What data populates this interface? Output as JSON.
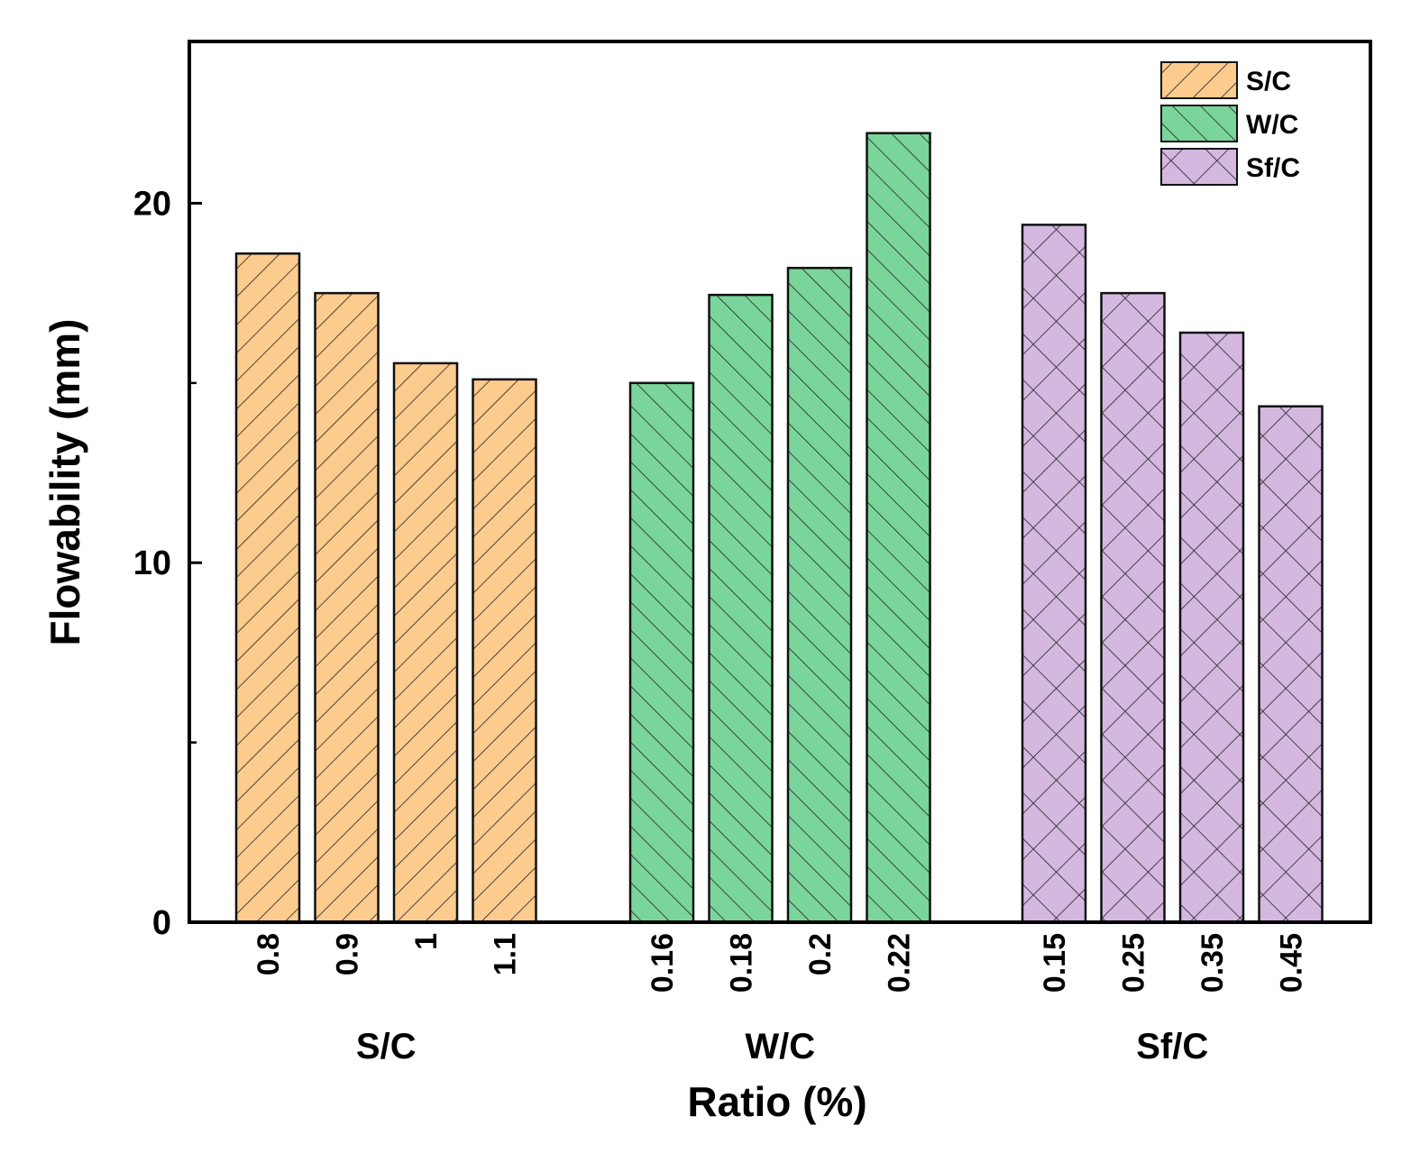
{
  "chart_data": {
    "type": "bar",
    "title": "",
    "xlabel": "Ratio (%)",
    "ylabel": "Flowability (mm)",
    "ylim": [
      0,
      24.5
    ],
    "yticks": [
      0,
      10,
      20
    ],
    "legend_position": "top-right",
    "series": [
      {
        "name": "S/C",
        "group_label": "S/C",
        "color": "#fccb8e",
        "hatch": "forward-diagonal",
        "categories": [
          "0.8",
          "0.9",
          "1",
          "1.1"
        ],
        "values": [
          18.6,
          17.5,
          15.55,
          15.1
        ]
      },
      {
        "name": "W/C",
        "group_label": "W/C",
        "color": "#7ad59a",
        "hatch": "back-diagonal",
        "categories": [
          "0.16",
          "0.18",
          "0.2",
          "0.22"
        ],
        "values": [
          15.0,
          17.45,
          18.2,
          21.95
        ]
      },
      {
        "name": "Sf/C",
        "group_label": "Sf/C",
        "color": "#d4b8e0",
        "hatch": "cross-diagonal",
        "categories": [
          "0.15",
          "0.25",
          "0.35",
          "0.45"
        ],
        "values": [
          19.4,
          17.5,
          16.4,
          14.35
        ]
      }
    ]
  }
}
